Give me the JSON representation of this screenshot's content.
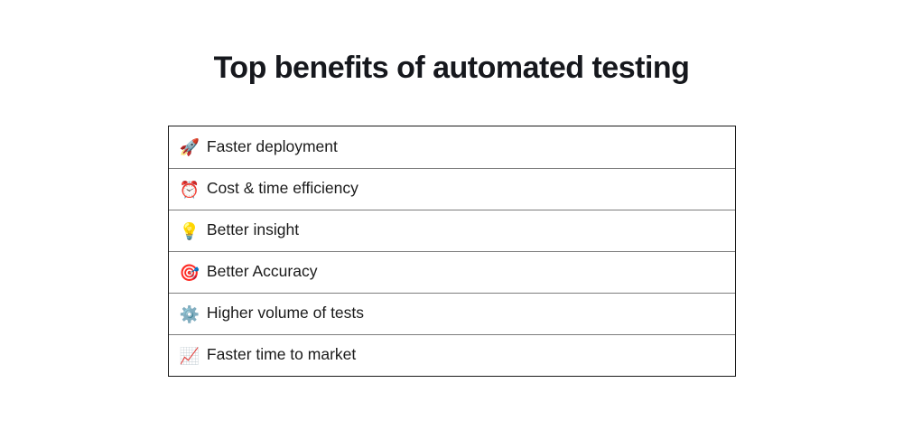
{
  "title": "Top benefits of automated testing",
  "benefits": {
    "items": [
      {
        "icon": "rocket-icon",
        "emoji": "🚀",
        "label": "Faster deployment"
      },
      {
        "icon": "alarm-clock-icon",
        "emoji": "⏰",
        "label": "Cost & time efficiency"
      },
      {
        "icon": "light-bulb-icon",
        "emoji": "💡",
        "label": "Better insight"
      },
      {
        "icon": "target-icon",
        "emoji": "🎯",
        "label": "Better Accuracy"
      },
      {
        "icon": "gear-icon",
        "emoji": "⚙️",
        "label": "Higher volume of tests"
      },
      {
        "icon": "chart-increasing-icon",
        "emoji": "📈",
        "label": "Faster time to market"
      }
    ]
  },
  "colors": {
    "background": "#ffffff",
    "title_text": "#16181d",
    "row_text": "#1a1a1a",
    "outer_border": "#1a1a1a",
    "inner_divider": "#7d7d7d"
  }
}
